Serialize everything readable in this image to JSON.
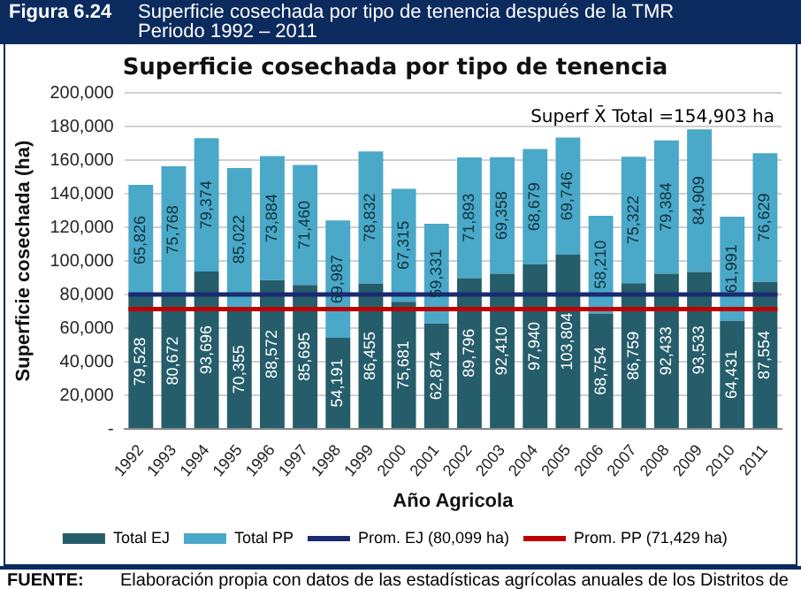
{
  "chart_data": {
    "type": "bar",
    "title": "Superficie cosechada por tipo de tenencia",
    "xlabel": "Año Agricola",
    "ylabel": "Superficie cosechada (ha)",
    "categories": [
      "1992",
      "1993",
      "1994",
      "1995",
      "1996",
      "1997",
      "1998",
      "1999",
      "2000",
      "2001",
      "2002",
      "2003",
      "2004",
      "2005",
      "2006",
      "2007",
      "2008",
      "2009",
      "2010",
      "2011"
    ],
    "stacked": true,
    "series": [
      {
        "name": "Total EJ",
        "color": "#255d6b",
        "values": [
          79528,
          80672,
          93696,
          70355,
          88572,
          85695,
          54191,
          86455,
          75681,
          62874,
          89796,
          92410,
          97940,
          103804,
          68754,
          86759,
          92433,
          93533,
          64431,
          87554
        ],
        "value_labels": [
          "79,528",
          "80,672",
          "93,696",
          "70,355",
          "88,572",
          "85,695",
          "54,191",
          "86,455",
          "75,681",
          "62,874",
          "89,796",
          "92,410",
          "97,940",
          "103,804",
          "68,754",
          "86,759",
          "92,433",
          "93,533",
          "64,431",
          "87,554"
        ]
      },
      {
        "name": "Total PP",
        "color": "#4aa8c8",
        "values": [
          65826,
          75768,
          79374,
          85022,
          73884,
          71460,
          69987,
          78832,
          67315,
          59331,
          71893,
          69358,
          68679,
          69746,
          58210,
          75322,
          79384,
          84909,
          61991,
          76629
        ],
        "value_labels": [
          "65,826",
          "75,768",
          "79,374",
          "85,022",
          "73,884",
          "71,460",
          "69,987",
          "78,832",
          "67,315",
          "59,331",
          "71,893",
          "69,358",
          "68,679",
          "69,746",
          "58,210",
          "75,322",
          "79,384",
          "84,909",
          "61,991",
          "76,629"
        ]
      }
    ],
    "ylim": [
      0,
      200000
    ],
    "yticks": [
      {
        "value": 0,
        "label": "-"
      },
      {
        "value": 20000,
        "label": "20,000"
      },
      {
        "value": 40000,
        "label": "40,000"
      },
      {
        "value": 60000,
        "label": "60,000"
      },
      {
        "value": 80000,
        "label": "80,000"
      },
      {
        "value": 100000,
        "label": "100,000"
      },
      {
        "value": 120000,
        "label": "120,000"
      },
      {
        "value": 140000,
        "label": "140,000"
      },
      {
        "value": 160000,
        "label": "160,000"
      },
      {
        "value": 180000,
        "label": "180,000"
      },
      {
        "value": 200000,
        "label": "200,000"
      }
    ],
    "grid": "y",
    "legend": "bottom",
    "ref_lines": [
      {
        "axis": "y",
        "value": 80099,
        "label": "Prom. EJ (80,099 ha)",
        "color": "#1a2a70"
      },
      {
        "axis": "y",
        "value": 71429,
        "label": "Prom. PP (71,429 ha)",
        "color": "#c00000"
      }
    ],
    "annotations": [
      "Figura 6.24",
      "Superficie cosechada por tipo de tenencia después de la TMR",
      "Periodo 1992 – 2011",
      "Superf X̄ Total =154,903 ha",
      "FUENTE:",
      "Elaboración propia con datos de las estadísticas agrícolas anuales de los Distritos de"
    ]
  }
}
